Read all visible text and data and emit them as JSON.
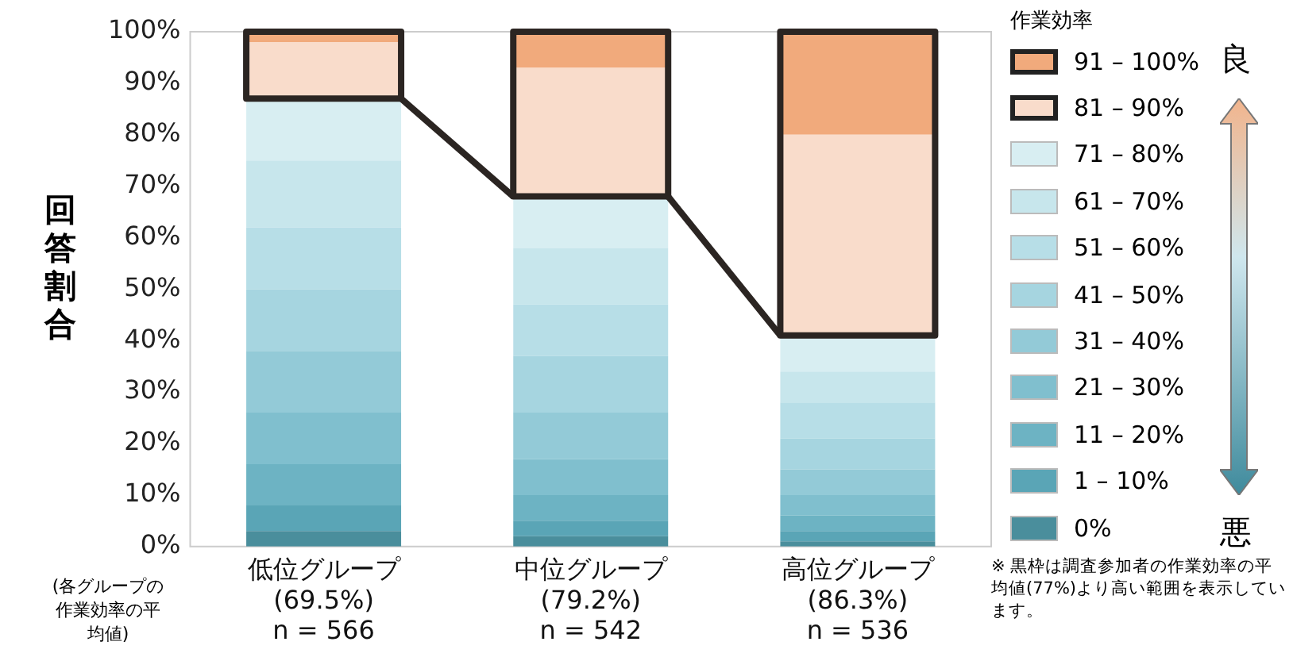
{
  "chart_data": {
    "type": "bar",
    "stacked": true,
    "ylabel": "回答割合",
    "legend_title": "作業効率",
    "legend": "right",
    "grid": false,
    "categories": [
      "低位グループ\n(69.5%)\nn = 566",
      "中位グループ\n(79.2%)\nn = 542",
      "高位グループ\n(86.3%)\nn = 536"
    ],
    "ylim": [
      0,
      100
    ],
    "yticks": [
      {
        "value": 0,
        "label": "0%"
      },
      {
        "value": 10,
        "label": "10%"
      },
      {
        "value": 20,
        "label": "20%"
      },
      {
        "value": 30,
        "label": "30%"
      },
      {
        "value": 40,
        "label": "40%"
      },
      {
        "value": 50,
        "label": "50%"
      },
      {
        "value": 60,
        "label": "60%"
      },
      {
        "value": 70,
        "label": "70%"
      },
      {
        "value": 80,
        "label": "80%"
      },
      {
        "value": 90,
        "label": "90%"
      },
      {
        "value": 100,
        "label": "100%"
      }
    ],
    "series": [
      {
        "name": "0%",
        "color": "#4a8e9c",
        "values": [
          3,
          2,
          1
        ]
      },
      {
        "name": "1 – 10%",
        "color": "#5aa5b6",
        "values": [
          5,
          3,
          2
        ]
      },
      {
        "name": "11 – 20%",
        "color": "#6db3c3",
        "values": [
          8,
          5,
          3
        ]
      },
      {
        "name": "21 – 30%",
        "color": "#80bfce",
        "values": [
          10,
          7,
          4
        ]
      },
      {
        "name": "31 – 40%",
        "color": "#93cad7",
        "values": [
          12,
          9,
          5
        ]
      },
      {
        "name": "41 – 50%",
        "color": "#a6d5e0",
        "values": [
          12,
          11,
          6
        ]
      },
      {
        "name": "51 – 60%",
        "color": "#b7dee7",
        "values": [
          12,
          10,
          7
        ]
      },
      {
        "name": "61 – 70%",
        "color": "#c7e6ec",
        "values": [
          13,
          11,
          6
        ]
      },
      {
        "name": "71 – 80%",
        "color": "#d8eef2",
        "values": [
          12,
          10,
          7
        ]
      },
      {
        "name": "81 – 90%",
        "color": "#f9dccb",
        "values": [
          11,
          25,
          39
        ]
      },
      {
        "name": "91 – 100%",
        "color": "#f1aa7c",
        "values": [
          2,
          7,
          20
        ]
      }
    ],
    "annotations": [
      "(各グループの作業効率の平均値)",
      "良",
      "悪",
      "※ 黒枠は調査参加者の作業効率の平均値(77%)より高い範囲を表示しています。"
    ]
  }
}
